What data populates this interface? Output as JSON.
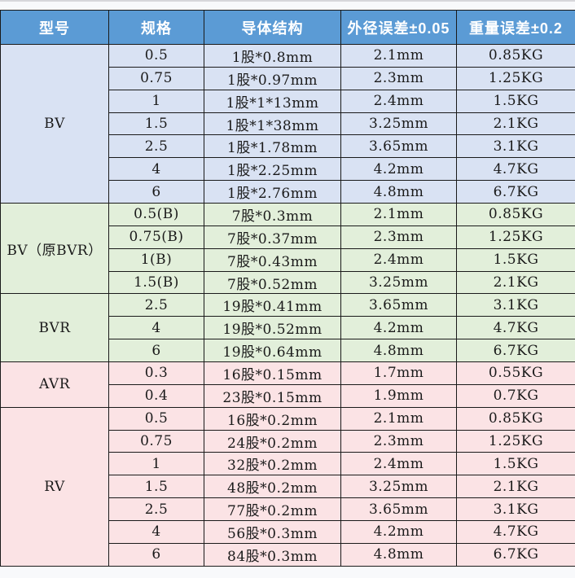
{
  "table": {
    "headers": [
      "型号",
      "规格",
      "导体结构",
      "外径误差±0.05",
      "重量误差±0.2"
    ],
    "sections": [
      {
        "model": "BV",
        "theme": "blue",
        "rows": [
          [
            "0.5",
            "1股*0.8mm",
            "2.1mm",
            "0.85KG"
          ],
          [
            "0.75",
            "1股*0.97mm",
            "2.3mm",
            "1.25KG"
          ],
          [
            "1",
            "1股*1*13mm",
            "2.4mm",
            "1.5KG"
          ],
          [
            "1.5",
            "1股*1*38mm",
            "3.25mm",
            "2.1KG"
          ],
          [
            "2.5",
            "1股*1.78mm",
            "3.65mm",
            "3.1KG"
          ],
          [
            "4",
            "1股*2.25mm",
            "4.2mm",
            "4.7KG"
          ],
          [
            "6",
            "1股*2.76mm",
            "4.8mm",
            "6.7KG"
          ]
        ]
      },
      {
        "model": "BV（原BVR）",
        "theme": "green",
        "rows": [
          [
            "0.5(B)",
            "7股*0.3mm",
            "2.1mm",
            "0.85KG"
          ],
          [
            "0.75(B)",
            "7股*0.37mm",
            "2.3mm",
            "1.25KG"
          ],
          [
            "1(B)",
            "7股*0.43mm",
            "2.4mm",
            "1.5KG"
          ],
          [
            "1.5(B)",
            "7股*0.52mm",
            "3.25mm",
            "2.1KG"
          ]
        ]
      },
      {
        "model": "BVR",
        "theme": "green",
        "rows": [
          [
            "2.5",
            "19股*0.41mm",
            "3.65mm",
            "3.1KG"
          ],
          [
            "4",
            "19股*0.52mm",
            "4.2mm",
            "4.7KG"
          ],
          [
            "6",
            "19股*0.64mm",
            "4.8mm",
            "6.7KG"
          ]
        ]
      },
      {
        "model": "AVR",
        "theme": "pink",
        "rows": [
          [
            "0.3",
            "16股*0.15mm",
            "1.7mm",
            "0.55KG"
          ],
          [
            "0.4",
            "23股*0.15mm",
            "1.9mm",
            "0.7KG"
          ]
        ]
      },
      {
        "model": "RV",
        "theme": "pink",
        "rows": [
          [
            "0.5",
            "16股*0.2mm",
            "2.1mm",
            "0.85KG"
          ],
          [
            "0.75",
            "24股*0.2mm",
            "2.3mm",
            "1.25KG"
          ],
          [
            "1",
            "32股*0.2mm",
            "2.4mm",
            "1.5KG"
          ],
          [
            "1.5",
            "48股*0.2mm",
            "3.25mm",
            "2.1KG"
          ],
          [
            "2.5",
            "77股*0.2mm",
            "3.65mm",
            "3.1KG"
          ],
          [
            "4",
            "56股*0.3mm",
            "4.2mm",
            "4.7KG"
          ],
          [
            "6",
            "84股*0.3mm",
            "4.8mm",
            "6.7KG"
          ]
        ]
      }
    ],
    "colors": {
      "header_bg": "#5B9BD5",
      "header_text": "#FFFFFF",
      "blue_bg": "#D9E2F3",
      "green_bg": "#E2EFDA",
      "pink_bg": "#FBE3E5",
      "border": "#1A1A1A",
      "text": "#1A1A1A",
      "page_bg": "#F8F9FB"
    }
  }
}
